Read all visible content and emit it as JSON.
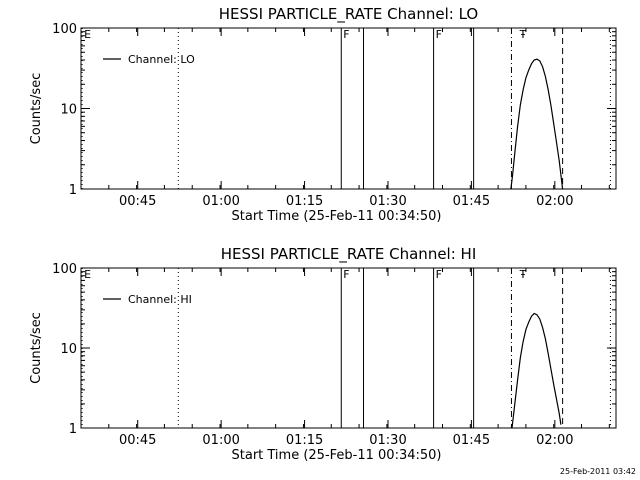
{
  "chart_data": [
    {
      "type": "line",
      "title": "HESSI PARTICLE_RATE Channel: LO",
      "xlabel": "Start Time (25-Feb-11 00:34:50)",
      "ylabel": "Counts/sec",
      "y_scale": "log",
      "ylim": [
        1,
        100
      ],
      "xlim_minutes_after_start": [
        0,
        96.2
      ],
      "x_tick_labels": [
        "00:45",
        "01:00",
        "01:15",
        "01:30",
        "01:45",
        "02:00"
      ],
      "x_tick_values": [
        10.2,
        25.2,
        40.2,
        55.2,
        70.2,
        85.2
      ],
      "y_tick_labels": [
        "1",
        "10",
        "100"
      ],
      "y_tick_values": [
        1,
        10,
        100
      ],
      "legend": {
        "label": "Channel: LO",
        "placement": "top-left"
      },
      "markers": [
        {
          "label": "E",
          "x": 0.2,
          "style": "dotted"
        },
        {
          "label": "",
          "x": 17.5,
          "style": "dotted"
        },
        {
          "label": "F",
          "x": 46.8,
          "style": "solid"
        },
        {
          "label": "",
          "x": 50.8,
          "style": "solid"
        },
        {
          "label": "F",
          "x": 63.4,
          "style": "solid"
        },
        {
          "label": "",
          "x": 70.6,
          "style": "solid"
        },
        {
          "label": "",
          "x": 77.4,
          "style": "dashdot"
        },
        {
          "label": "Ŧ",
          "x": 78.5,
          "style": "none"
        },
        {
          "label": "",
          "x": 86.6,
          "style": "dashed"
        },
        {
          "label": "",
          "x": 95.2,
          "style": "dotted"
        }
      ],
      "series": [
        {
          "x": [
            77.3,
            77.6,
            78.0,
            78.5,
            79.0,
            79.5,
            80.0,
            80.5,
            81.0,
            81.5,
            82.0,
            82.5,
            83.0,
            83.5,
            84.0,
            84.5,
            85.0,
            85.5,
            86.0,
            86.3,
            86.6
          ],
          "y": [
            1.0,
            1.5,
            2.8,
            6.0,
            11.0,
            17.0,
            24.0,
            30.0,
            36.0,
            40.0,
            41.0,
            39.0,
            33.0,
            25.0,
            17.0,
            11.0,
            6.5,
            3.8,
            2.2,
            1.5,
            1.0
          ]
        }
      ]
    },
    {
      "type": "line",
      "title": "HESSI PARTICLE_RATE Channel: HI",
      "xlabel": "Start Time (25-Feb-11 00:34:50)",
      "ylabel": "Counts/sec",
      "y_scale": "log",
      "ylim": [
        1,
        100
      ],
      "xlim_minutes_after_start": [
        0,
        96.2
      ],
      "x_tick_labels": [
        "00:45",
        "01:00",
        "01:15",
        "01:30",
        "01:45",
        "02:00"
      ],
      "x_tick_values": [
        10.2,
        25.2,
        40.2,
        55.2,
        70.2,
        85.2
      ],
      "y_tick_labels": [
        "1",
        "10",
        "100"
      ],
      "y_tick_values": [
        1,
        10,
        100
      ],
      "legend": {
        "label": "Channel: HI",
        "placement": "top-left"
      },
      "markers": [
        {
          "label": "E",
          "x": 0.2,
          "style": "dotted"
        },
        {
          "label": "",
          "x": 17.5,
          "style": "dotted"
        },
        {
          "label": "F",
          "x": 46.8,
          "style": "solid"
        },
        {
          "label": "",
          "x": 50.8,
          "style": "solid"
        },
        {
          "label": "F",
          "x": 63.4,
          "style": "solid"
        },
        {
          "label": "",
          "x": 70.6,
          "style": "solid"
        },
        {
          "label": "",
          "x": 77.4,
          "style": "dashdot"
        },
        {
          "label": "Ŧ",
          "x": 78.5,
          "style": "none"
        },
        {
          "label": "",
          "x": 86.6,
          "style": "dashed"
        },
        {
          "label": "",
          "x": 95.2,
          "style": "dotted"
        }
      ],
      "series": [
        {
          "x": [
            77.5,
            78.0,
            78.5,
            79.0,
            79.5,
            80.0,
            80.5,
            81.0,
            81.5,
            82.0,
            82.5,
            83.0,
            83.5,
            84.0,
            84.5,
            85.0,
            85.5,
            86.0,
            86.3
          ],
          "y": [
            1.0,
            2.0,
            4.0,
            7.5,
            12.0,
            17.0,
            21.0,
            25.0,
            27.0,
            26.0,
            23.0,
            18.0,
            13.0,
            8.5,
            5.5,
            3.5,
            2.3,
            1.5,
            1.1
          ]
        }
      ]
    }
  ],
  "footer": {
    "timestamp": "25-Feb-2011 03:42"
  }
}
